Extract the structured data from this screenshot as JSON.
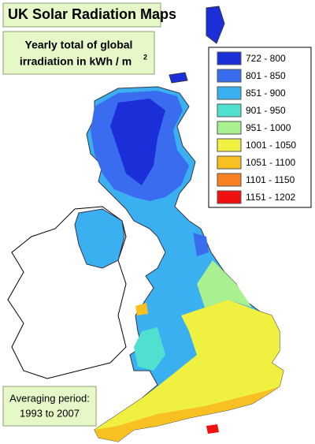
{
  "title": "UK Solar Radiation Maps",
  "subtitle": {
    "line1": "Yearly total of global",
    "line2": "irradiation in kWh / m",
    "superscript": "2"
  },
  "legend": {
    "items": [
      {
        "label": "722 - 800",
        "color": "#1a2fd8"
      },
      {
        "label": "801 - 850",
        "color": "#3a6cf0"
      },
      {
        "label": "851 - 900",
        "color": "#3ab0f0"
      },
      {
        "label": "901 - 950",
        "color": "#50e0d0"
      },
      {
        "label": "951 - 1000",
        "color": "#a8f090"
      },
      {
        "label": "1001 - 1050",
        "color": "#f0f040"
      },
      {
        "label": "1051 - 1100",
        "color": "#f8c020"
      },
      {
        "label": "1101 - 1150",
        "color": "#f88020"
      },
      {
        "label": "1151 - 1202",
        "color": "#f01010"
      }
    ]
  },
  "period": {
    "line1": "Averaging period:",
    "line2": "1993 to 2007"
  }
}
